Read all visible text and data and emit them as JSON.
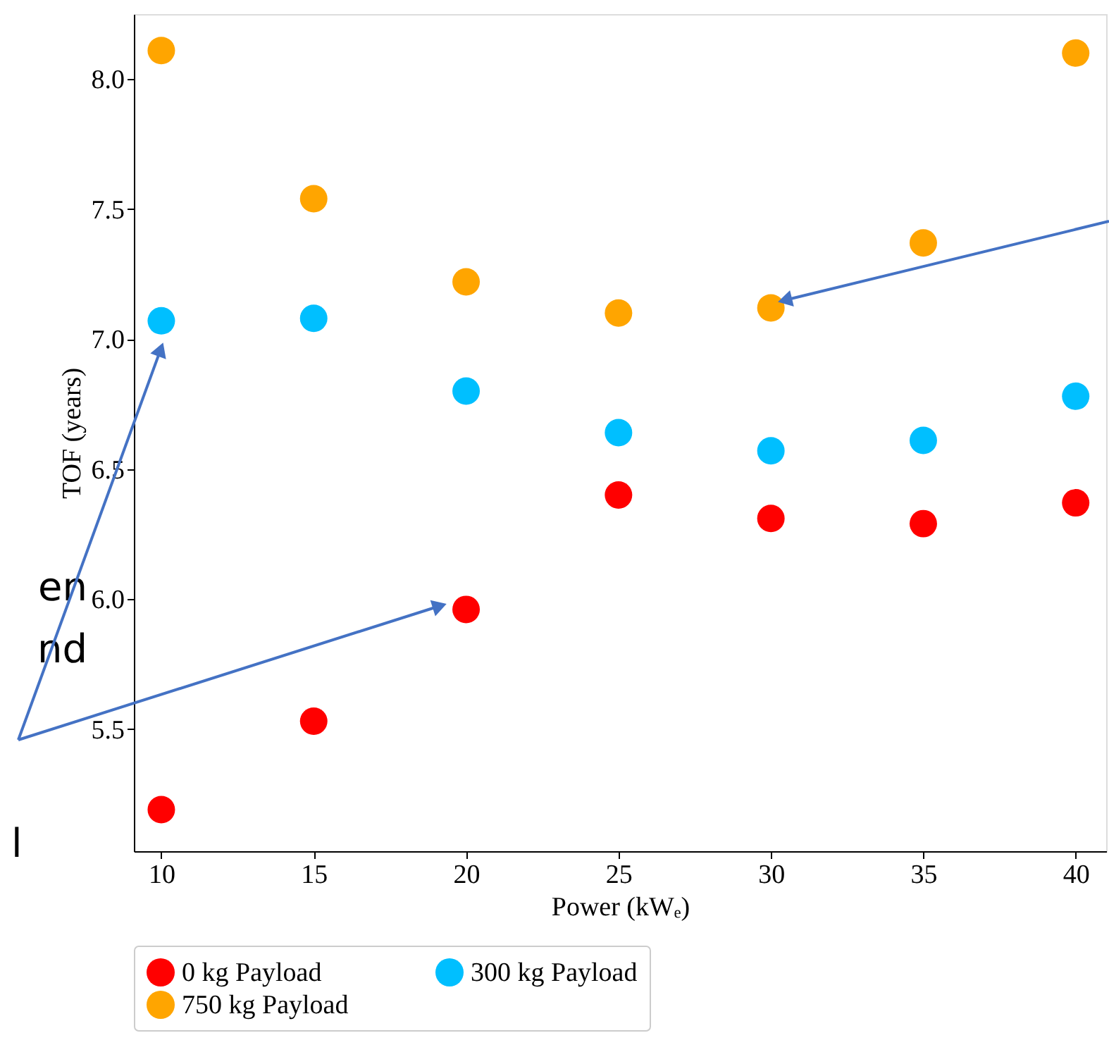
{
  "chart_data": {
    "type": "scatter",
    "xlabel": "Power (kWₑ)",
    "ylabel": "TOF (years)",
    "x": [
      10,
      15,
      20,
      25,
      30,
      35,
      40
    ],
    "series": [
      {
        "name": "0 kg Payload",
        "color": "#ff0000",
        "values": [
          5.19,
          5.53,
          5.96,
          6.4,
          6.31,
          6.29,
          6.37
        ]
      },
      {
        "name": "300 kg Payload",
        "color": "#00bfff",
        "values": [
          7.07,
          7.08,
          6.8,
          6.64,
          6.57,
          6.61,
          6.78
        ]
      },
      {
        "name": "750 kg Payload",
        "color": "#ffa500",
        "values": [
          8.11,
          7.54,
          7.22,
          7.1,
          7.12,
          7.37,
          8.1
        ]
      }
    ],
    "xlim": [
      9.1,
      41
    ],
    "ylim": [
      5.03,
      8.25
    ],
    "xticks": [
      10,
      15,
      20,
      25,
      30,
      35,
      40
    ],
    "yticks": [
      5.5,
      {
        "value": 6,
        "label": "6.0"
      },
      6.5,
      {
        "value": 7,
        "label": "7.0"
      },
      7.5,
      {
        "value": 8,
        "label": "8.0"
      }
    ],
    "marker": "circle",
    "grid": false,
    "legend": "bottom",
    "annotations": [
      "en",
      "nd",
      "l"
    ]
  }
}
